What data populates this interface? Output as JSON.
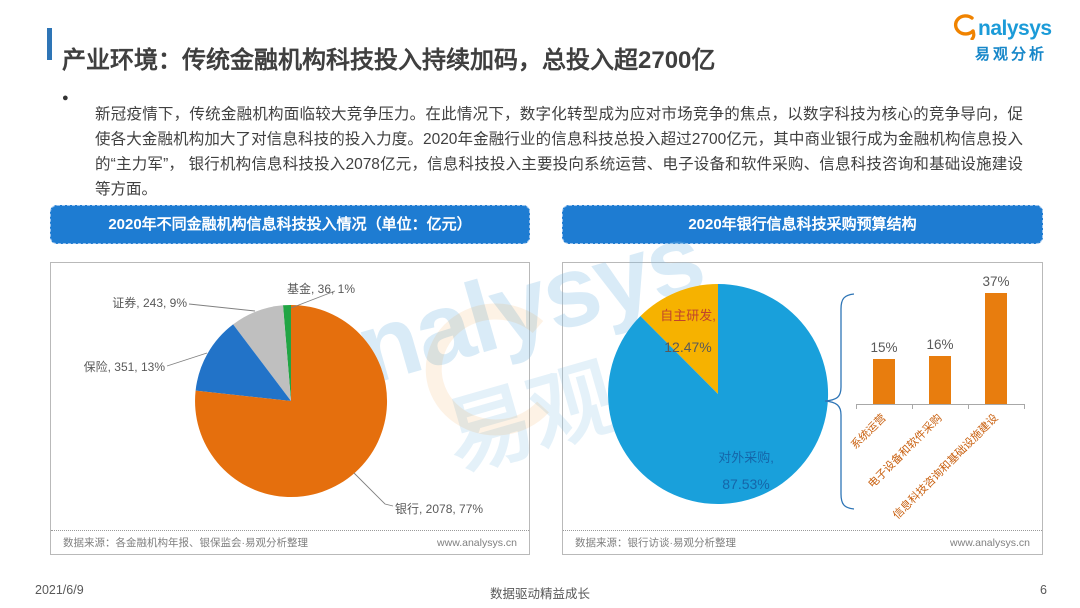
{
  "page": {
    "title": "产业环境：传统金融机构科技投入持续加码，总投入超2700亿",
    "logo": {
      "brand": "analysys",
      "brand_tail": "nalysys",
      "brand_cn": "易观分析"
    },
    "bullet_text": "新冠疫情下，传统金融机构面临较大竞争压力。在此情况下，数字化转型成为应对市场竞争的焦点，以数字科技为核心的竞争导向，促使各大金融机构加大了对信息科技的投入力度。2020年金融行业的信息科技总投入超过2700亿元，其中商业银行成为金融机构信息投入的“主力军”， 银行机构信息科技投入2078亿元，信息科技投入主要投向系统运营、电子设备和软件采购、信息科技咨询和基础设施建设等方面。",
    "watermark": {
      "text": "analysys",
      "text_cn": "易观"
    },
    "footer": {
      "date": "2021/6/9",
      "slogan": "数据驱动精益成长",
      "page_number": "6"
    }
  },
  "left_panel": {
    "header": "2020年不同金融机构信息科技投入情况（单位：亿元）",
    "source": "数据来源：各金融机构年报、银保监会·易观分析整理",
    "website": "www.analysys.cn"
  },
  "right_panel": {
    "header": "2020年银行信息科技采购预算结构",
    "source": "数据来源：银行访谈·易观分析整理",
    "website": "www.analysys.cn"
  },
  "chart_data": [
    {
      "type": "pie",
      "title": "2020年不同金融机构信息科技投入情况",
      "unit": "亿元",
      "categories": [
        "银行",
        "保险",
        "证券",
        "基金"
      ],
      "values": [
        2078,
        351,
        243,
        36
      ],
      "percentages": [
        77,
        13,
        9,
        1
      ],
      "colors": [
        "#E56F0D",
        "#2273C8",
        "#BFBFBF",
        "#21A544"
      ],
      "labels": [
        "银行, 2078, 77%",
        "保险, 351, 13%",
        "证券, 243, 9%",
        "基金, 36, 1%"
      ],
      "start_angle_deg": 0,
      "direction": "clockwise",
      "legend_position": "none"
    },
    {
      "type": "pie",
      "title": "2020年银行信息科技采购预算结构",
      "categories": [
        "对外采购",
        "自主研发"
      ],
      "values": [
        87.53,
        12.47
      ],
      "colors": [
        "#19A0DB",
        "#F6B200"
      ],
      "slice_labels": [
        {
          "line1": "对外采购,",
          "line2": "87.53%"
        },
        {
          "line1": "自主研发,",
          "line2": "12.47%"
        }
      ],
      "start_angle_deg": 0,
      "direction": "clockwise",
      "legend_position": "none"
    },
    {
      "type": "bar",
      "title": "对外采购结构",
      "categories": [
        "系统运营",
        "电子设备和软件采购",
        "信息科技咨询和基础设施建设"
      ],
      "values": [
        15,
        16,
        37
      ],
      "value_labels": [
        "15%",
        "16%",
        "37%"
      ],
      "bar_color": "#E87D0E",
      "ylim": [
        0,
        40
      ],
      "grid": false
    }
  ]
}
